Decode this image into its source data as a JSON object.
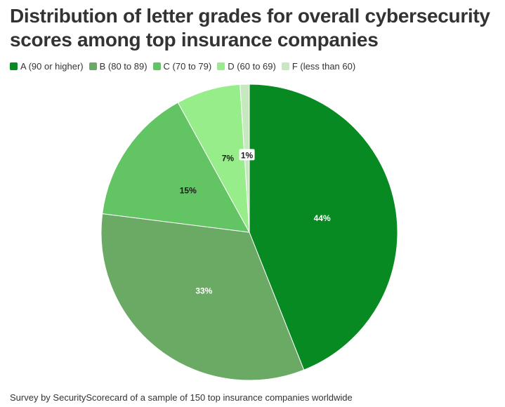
{
  "chart_data": {
    "type": "pie",
    "title": "Distribution of letter grades for overall cybersecurity scores among top insurance companies",
    "legend_position": "top-left",
    "slices": [
      {
        "name": "A (90 or higher)",
        "value": 44,
        "label": "44%",
        "color": "#078a21",
        "label_color": "#ffffff"
      },
      {
        "name": "B (80 to 89)",
        "value": 33,
        "label": "33%",
        "color": "#6aaa64",
        "label_color": "#ffffff"
      },
      {
        "name": "C (70 to 79)",
        "value": 15,
        "label": "15%",
        "color": "#62c462",
        "label_color": "#1a1a1a"
      },
      {
        "name": "D (60 to 69)",
        "value": 7,
        "label": "7%",
        "color": "#96ed89",
        "label_color": "#1a1a1a"
      },
      {
        "name": "F (less than 60)",
        "value": 1,
        "label": "1%",
        "color": "#c7e9c0",
        "label_color": "#1a1a1a"
      }
    ],
    "footnote": "Survey by SecurityScorecard of a sample of 150 top insurance companies worldwide"
  }
}
